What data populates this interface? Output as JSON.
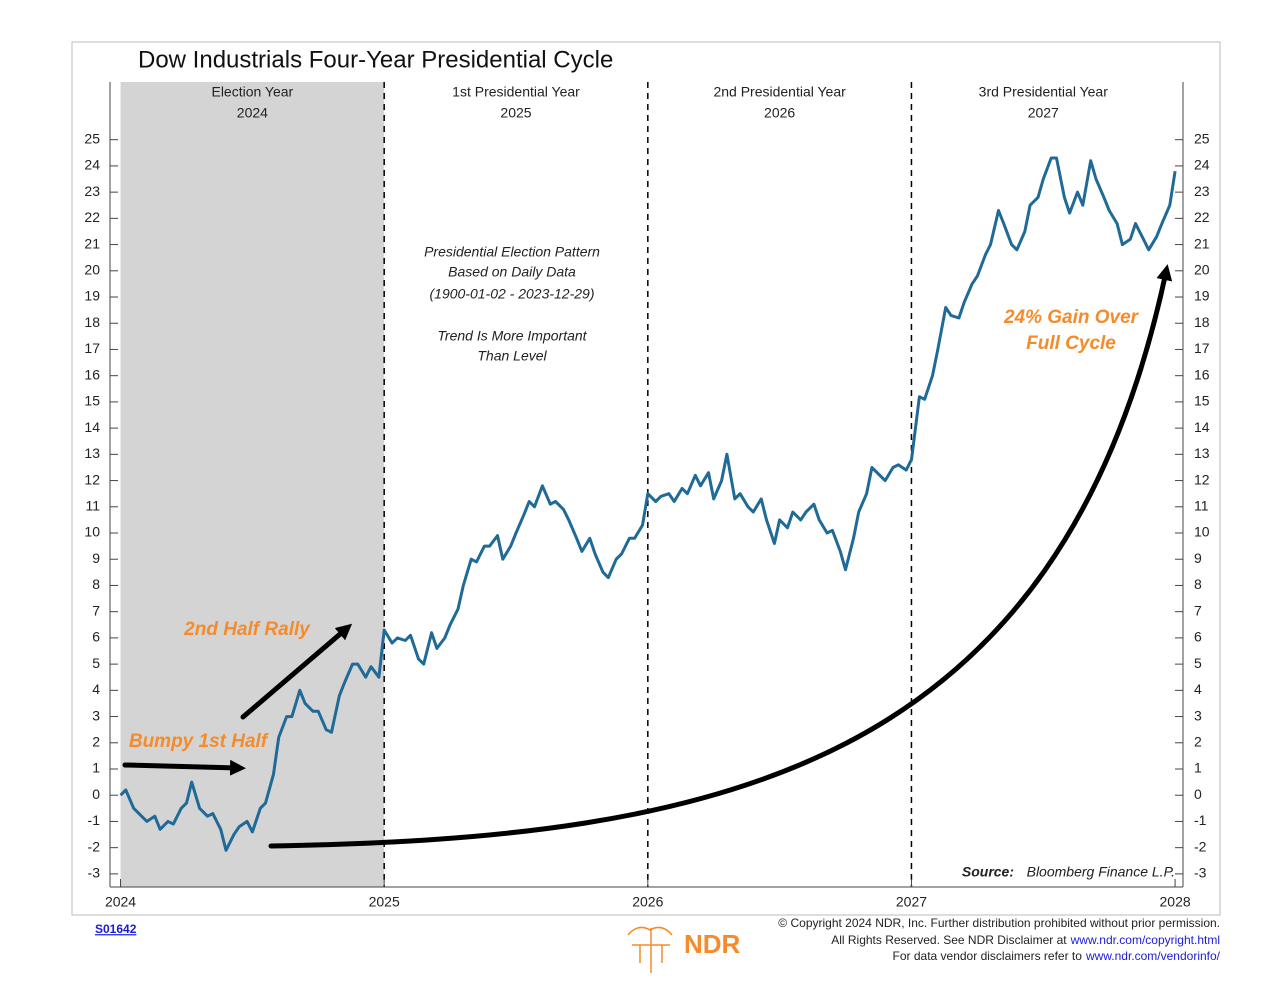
{
  "chart_data": {
    "type": "line",
    "title": "Dow Industrials Four-Year Presidential Cycle",
    "periods": [
      {
        "name": "Election Year",
        "year": "2024"
      },
      {
        "name": "1st Presidential Year",
        "year": "2025"
      },
      {
        "name": "2nd Presidential Year",
        "year": "2026"
      },
      {
        "name": "3rd Presidential Year",
        "year": "2027"
      }
    ],
    "note": [
      "Presidential Election Pattern",
      "Based on Daily Data",
      "(1900-01-02 - 2023-12-29)",
      "Trend Is More Important",
      "Than Level"
    ],
    "callouts": [
      "2nd Half Rally",
      "Bumpy 1st Half",
      "24% Gain Over",
      "Full Cycle"
    ],
    "source_label": "Source:",
    "source": "Bloomberg Finance L.P.",
    "color": "#1f6a96",
    "shade_color": "#d4d4d4",
    "shaded_range": [
      2024,
      2025
    ],
    "xlim": [
      2023.96,
      2028.03
    ],
    "xticks": [
      2024,
      2025,
      2026,
      2027,
      2028
    ],
    "ylim": [
      -3.5,
      27.2
    ],
    "yticks": [
      -3,
      -2,
      -1,
      0,
      1,
      2,
      3,
      4,
      5,
      6,
      7,
      8,
      9,
      10,
      11,
      12,
      13,
      14,
      15,
      16,
      17,
      18,
      19,
      20,
      21,
      22,
      23,
      24,
      25
    ],
    "x": [
      2024.0,
      2024.02,
      2024.05,
      2024.08,
      2024.1,
      2024.13,
      2024.15,
      2024.18,
      2024.2,
      2024.23,
      2024.25,
      2024.27,
      2024.3,
      2024.33,
      2024.35,
      2024.38,
      2024.4,
      2024.43,
      2024.45,
      2024.48,
      2024.5,
      2024.53,
      2024.55,
      2024.58,
      2024.6,
      2024.63,
      2024.65,
      2024.68,
      2024.7,
      2024.73,
      2024.75,
      2024.78,
      2024.8,
      2024.83,
      2024.85,
      2024.88,
      2024.9,
      2024.93,
      2024.95,
      2024.98,
      2025.0,
      2025.03,
      2025.05,
      2025.08,
      2025.1,
      2025.13,
      2025.15,
      2025.18,
      2025.2,
      2025.23,
      2025.25,
      2025.28,
      2025.3,
      2025.33,
      2025.35,
      2025.38,
      2025.4,
      2025.43,
      2025.45,
      2025.48,
      2025.5,
      2025.53,
      2025.55,
      2025.57,
      2025.6,
      2025.63,
      2025.65,
      2025.68,
      2025.7,
      2025.73,
      2025.75,
      2025.78,
      2025.8,
      2025.83,
      2025.85,
      2025.88,
      2025.9,
      2025.93,
      2025.95,
      2025.98,
      2026.0,
      2026.03,
      2026.05,
      2026.08,
      2026.1,
      2026.13,
      2026.15,
      2026.18,
      2026.2,
      2026.23,
      2026.25,
      2026.28,
      2026.3,
      2026.33,
      2026.35,
      2026.38,
      2026.4,
      2026.43,
      2026.45,
      2026.48,
      2026.5,
      2026.53,
      2026.55,
      2026.58,
      2026.6,
      2026.63,
      2026.65,
      2026.68,
      2026.7,
      2026.73,
      2026.75,
      2026.78,
      2026.8,
      2026.83,
      2026.85,
      2026.88,
      2026.9,
      2026.93,
      2026.95,
      2026.98,
      2027.0,
      2027.03,
      2027.05,
      2027.08,
      2027.1,
      2027.13,
      2027.15,
      2027.18,
      2027.2,
      2027.23,
      2027.25,
      2027.28,
      2027.3,
      2027.33,
      2027.35,
      2027.38,
      2027.4,
      2027.43,
      2027.45,
      2027.48,
      2027.5,
      2027.53,
      2027.55,
      2027.58,
      2027.6,
      2027.63,
      2027.65,
      2027.68,
      2027.7,
      2027.73,
      2027.75,
      2027.78,
      2027.8,
      2027.83,
      2027.85,
      2027.88,
      2027.9,
      2027.93,
      2027.95,
      2027.98,
      2028.0
    ],
    "values": [
      0,
      0.2,
      -0.5,
      -0.8,
      -1.0,
      -0.8,
      -1.3,
      -1.0,
      -1.1,
      -0.5,
      -0.3,
      0.5,
      -0.5,
      -0.8,
      -0.7,
      -1.3,
      -2.1,
      -1.5,
      -1.2,
      -1.0,
      -1.4,
      -0.5,
      -0.3,
      0.8,
      2.2,
      3.0,
      3.0,
      4.0,
      3.5,
      3.2,
      3.2,
      2.5,
      2.4,
      3.8,
      4.3,
      5.0,
      5.0,
      4.5,
      4.9,
      4.5,
      6.3,
      5.8,
      6.0,
      5.9,
      6.1,
      5.2,
      5.0,
      6.2,
      5.6,
      6.0,
      6.5,
      7.1,
      8.0,
      9.0,
      8.9,
      9.5,
      9.5,
      9.9,
      9.0,
      9.5,
      10.0,
      10.7,
      11.2,
      11.0,
      11.8,
      11.1,
      11.2,
      10.9,
      10.5,
      9.8,
      9.3,
      9.8,
      9.2,
      8.5,
      8.3,
      9.0,
      9.2,
      9.8,
      9.8,
      10.3,
      11.5,
      11.2,
      11.4,
      11.5,
      11.2,
      11.7,
      11.5,
      12.2,
      11.8,
      12.3,
      11.3,
      12.0,
      13.0,
      11.3,
      11.5,
      11.0,
      10.8,
      11.3,
      10.5,
      9.6,
      10.5,
      10.2,
      10.8,
      10.5,
      10.8,
      11.1,
      10.5,
      10.0,
      10.1,
      9.3,
      8.6,
      9.8,
      10.8,
      11.5,
      12.5,
      12.2,
      12.0,
      12.5,
      12.6,
      12.4,
      12.8,
      15.2,
      15.1,
      16.0,
      17.0,
      18.6,
      18.3,
      18.2,
      18.8,
      19.5,
      19.8,
      20.6,
      21.0,
      22.3,
      21.8,
      21.0,
      20.8,
      21.5,
      22.5,
      22.8,
      23.5,
      24.3,
      24.3,
      22.8,
      22.2,
      23.0,
      22.5,
      24.2,
      23.5,
      22.8,
      22.3,
      21.8,
      21.0,
      21.2,
      21.8,
      21.2,
      20.8,
      21.3,
      21.8,
      22.5,
      23.8
    ]
  },
  "footer": {
    "chart_id": "S01642",
    "copyright": [
      {
        "text": "© Copyright 2024 NDR, Inc. Further distribution prohibited without prior permission."
      },
      {
        "text": "All Rights Reserved. See NDR Disclaimer at",
        "link": "www.ndr.com/copyright.html"
      },
      {
        "text": "For data vendor disclaimers refer to",
        "link": "www.ndr.com/vendorinfo/"
      }
    ],
    "logo": "NDR"
  }
}
